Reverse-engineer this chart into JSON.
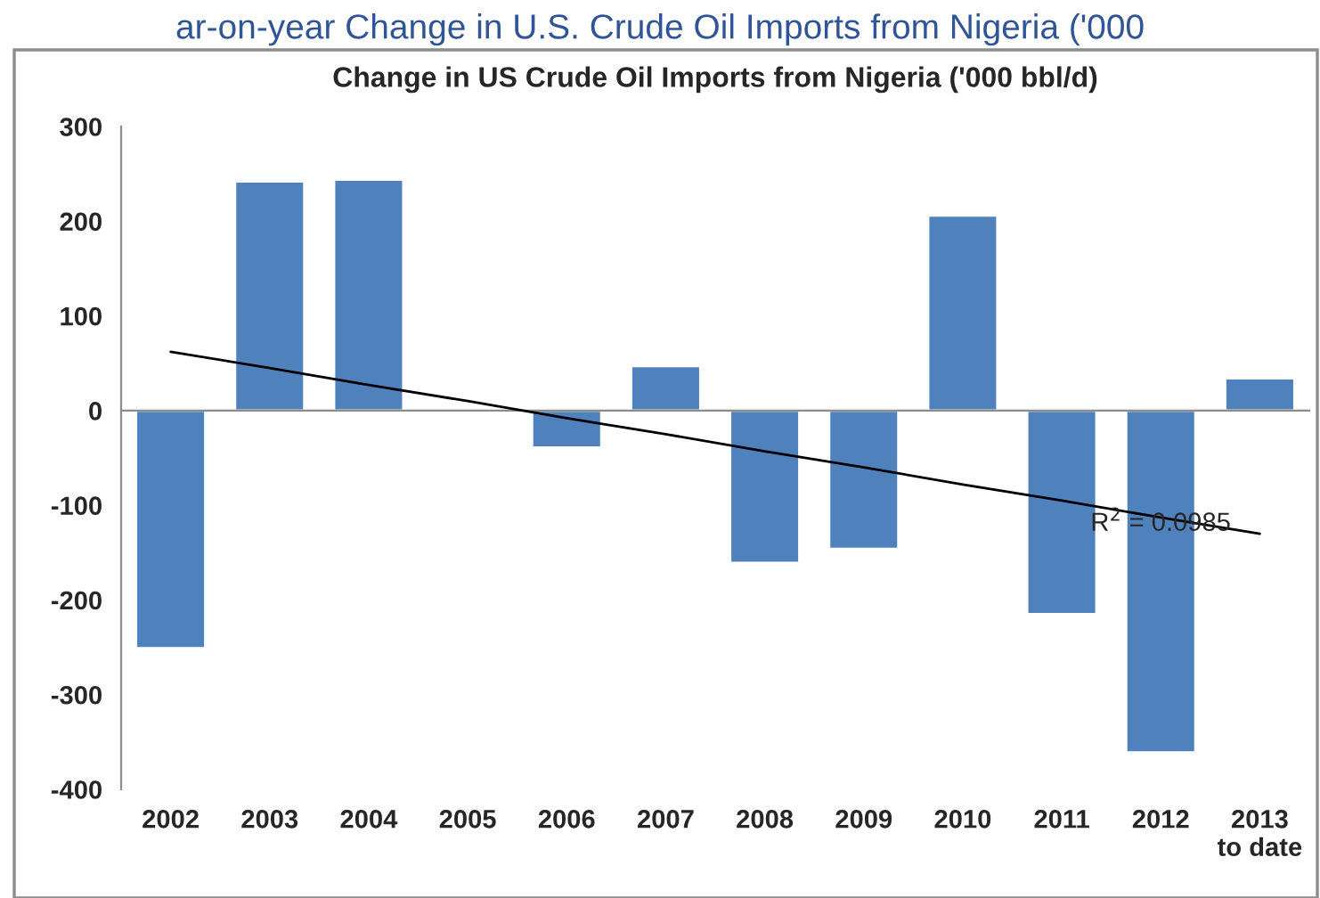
{
  "chart_data": {
    "type": "bar",
    "title": "Change in US Crude Oil Imports from Nigeria ('000 bbl/d)",
    "categories": [
      "2002",
      "2003",
      "2004",
      "2005",
      "2006",
      "2007",
      "2008",
      "2009",
      "2010",
      "2011",
      "2012",
      "2013\nto date"
    ],
    "series": [
      {
        "color": "#4f81bd",
        "values": [
          -251,
          242,
          244,
          null,
          -39,
          47,
          -161,
          -146,
          206,
          -215,
          -361,
          34
        ]
      },
      {
        "type": "line",
        "color": "#000000",
        "values": [
          62,
          45,
          27,
          10,
          -8,
          -25,
          -43,
          -60,
          -78,
          -95,
          -113,
          -130
        ]
      }
    ],
    "ylim": [
      -400,
      300
    ],
    "yticks": [
      -400,
      -300,
      -200,
      -100,
      0,
      100,
      200,
      300
    ],
    "annotations": [
      "ar-on-year Change in U.S. Crude Oil Imports from Nigeria ('000",
      {
        "text": "R$^{2}$ = 0.0985",
        "x": "2012",
        "y": -120
      }
    ]
  }
}
